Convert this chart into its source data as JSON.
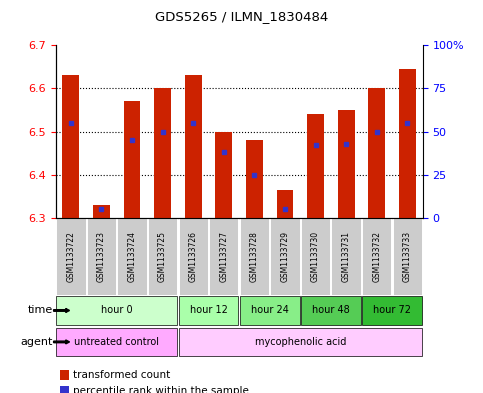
{
  "title": "GDS5265 / ILMN_1830484",
  "samples": [
    "GSM1133722",
    "GSM1133723",
    "GSM1133724",
    "GSM1133725",
    "GSM1133726",
    "GSM1133727",
    "GSM1133728",
    "GSM1133729",
    "GSM1133730",
    "GSM1133731",
    "GSM1133732",
    "GSM1133733"
  ],
  "transformed_counts": [
    6.63,
    6.33,
    6.57,
    6.6,
    6.63,
    6.5,
    6.48,
    6.365,
    6.54,
    6.55,
    6.6,
    6.645
  ],
  "percentile_ranks": [
    55,
    5,
    45,
    50,
    55,
    38,
    25,
    5,
    42,
    43,
    50,
    55
  ],
  "ymin": 6.3,
  "ymax": 6.7,
  "yleft_ticks": [
    6.3,
    6.4,
    6.5,
    6.6,
    6.7
  ],
  "yright_ticks": [
    0,
    25,
    50,
    75,
    100
  ],
  "bar_color": "#cc2200",
  "blue_color": "#3333cc",
  "time_groups": [
    {
      "label": "hour 0",
      "start": 0,
      "end": 3,
      "color": "#ccffcc"
    },
    {
      "label": "hour 12",
      "start": 4,
      "end": 5,
      "color": "#aaffaa"
    },
    {
      "label": "hour 24",
      "start": 6,
      "end": 7,
      "color": "#88ee88"
    },
    {
      "label": "hour 48",
      "start": 8,
      "end": 9,
      "color": "#55cc55"
    },
    {
      "label": "hour 72",
      "start": 10,
      "end": 11,
      "color": "#33bb33"
    }
  ],
  "agent_groups": [
    {
      "label": "untreated control",
      "start": 0,
      "end": 3,
      "color": "#ffaaff"
    },
    {
      "label": "mycophenolic acid",
      "start": 4,
      "end": 11,
      "color": "#ffccff"
    }
  ],
  "sample_bg_color": "#cccccc",
  "legend_red_label": "transformed count",
  "legend_blue_label": "percentile rank within the sample",
  "fig_width": 4.83,
  "fig_height": 3.93,
  "dpi": 100
}
